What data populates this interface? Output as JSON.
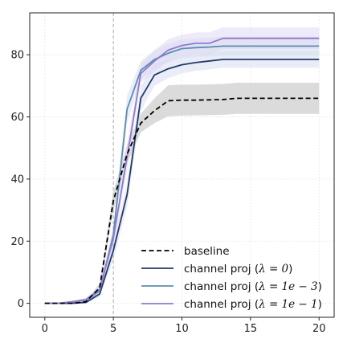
{
  "chart_data": {
    "type": "line",
    "title": "",
    "xlabel": "",
    "ylabel": "",
    "xlim": [
      -1.1,
      21.1
    ],
    "ylim": [
      -4.5,
      93.5
    ],
    "xticks": [
      0,
      5,
      10,
      15,
      20
    ],
    "yticks": [
      0,
      20,
      40,
      60,
      80
    ],
    "grid": true,
    "legend_position": "lower-right",
    "vline": {
      "x": 5,
      "color": "#aaaaaa",
      "style": "dashed"
    },
    "x": [
      0,
      1,
      2,
      3,
      4,
      5,
      6,
      7,
      8,
      9,
      10,
      11,
      12,
      13,
      14,
      15,
      16,
      17,
      18,
      19,
      20
    ],
    "series": [
      {
        "name": "baseline",
        "label_prefix": "baseline",
        "math": "",
        "color": "#000000",
        "dashed": true,
        "band_color": "#cfcfcf",
        "values": [
          0,
          0,
          0,
          0.5,
          5,
          33,
          48,
          58,
          62,
          65.2,
          65.4,
          65.4,
          65.5,
          65.6,
          66,
          66,
          66,
          66,
          66,
          66,
          66
        ],
        "lower": [
          0,
          0,
          0,
          0.2,
          3.5,
          30,
          45,
          55,
          58,
          60.2,
          60.4,
          60.5,
          60.6,
          60.7,
          61,
          61,
          61,
          61,
          61,
          61,
          61
        ],
        "upper": [
          0,
          0,
          0,
          0.8,
          6.5,
          36,
          51,
          61,
          66,
          70.2,
          70.4,
          70.4,
          70.5,
          70.6,
          71,
          71,
          71,
          71,
          71,
          71,
          71
        ]
      },
      {
        "name": "channel proj (λ = 0)",
        "label_prefix": "channel proj (",
        "math": "λ = 0",
        "color": "#1f3a6b",
        "dashed": false,
        "band_color": "#d6dcf0",
        "values": [
          0,
          0,
          0,
          0.3,
          3,
          17,
          35,
          66,
          73.5,
          75.5,
          76.8,
          77.5,
          78,
          78.5,
          78.5,
          78.5,
          78.5,
          78.5,
          78.5,
          78.5,
          78.5
        ],
        "lower": [
          0,
          0,
          0,
          0.1,
          2,
          14,
          31,
          62,
          70,
          72.5,
          74,
          74.8,
          75.3,
          75.8,
          75.8,
          75.8,
          75.8,
          75.8,
          75.8,
          75.8,
          75.8
        ],
        "upper": [
          0,
          0,
          0.2,
          0.6,
          4,
          20,
          39,
          70,
          77,
          78.5,
          79.6,
          80.2,
          80.7,
          81.2,
          81.2,
          81.2,
          81.2,
          81.2,
          81.2,
          81.2,
          81.2
        ]
      },
      {
        "name": "channel proj (λ = 1e − 3)",
        "label_prefix": "channel proj (",
        "math": "λ = 1e − 3",
        "color": "#5d8db0",
        "dashed": false,
        "band_color": "#d2def0",
        "values": [
          0,
          0,
          0.5,
          1,
          4,
          22,
          62.5,
          75,
          78.5,
          80.5,
          82,
          82.3,
          82.5,
          82.8,
          82.8,
          82.8,
          82.8,
          82.8,
          82.8,
          82.8,
          82.8
        ],
        "lower": [
          0,
          0,
          0.2,
          0.5,
          3,
          19,
          58,
          72,
          75.5,
          77.5,
          79,
          79.3,
          79.5,
          79.8,
          79.8,
          79.8,
          79.8,
          79.8,
          79.8,
          79.8,
          79.8
        ],
        "upper": [
          0,
          0.2,
          0.8,
          1.6,
          5,
          25,
          67,
          78,
          81.5,
          83.5,
          85,
          85.3,
          85.5,
          85.8,
          85.8,
          85.8,
          85.8,
          85.8,
          85.8,
          85.8,
          85.8
        ]
      },
      {
        "name": "channel proj (λ = 1e − 1)",
        "label_prefix": "channel proj (",
        "math": "λ = 1e − 1",
        "color": "#9178cf",
        "dashed": false,
        "band_color": "#ddd6f3",
        "values": [
          0,
          0,
          0.5,
          1.2,
          4.5,
          21,
          47,
          74,
          78,
          81.5,
          83,
          83.7,
          83.7,
          85.3,
          85.3,
          85.3,
          85.3,
          85.3,
          85.3,
          85.3,
          85.3
        ],
        "lower": [
          0,
          0,
          0.2,
          0.6,
          3.5,
          18,
          43,
          71,
          74.5,
          78,
          79.5,
          80.2,
          80.3,
          81.8,
          81.8,
          81.8,
          81.8,
          81.8,
          81.8,
          81.8,
          81.8
        ],
        "upper": [
          0,
          0.2,
          0.8,
          1.8,
          5.5,
          24,
          51,
          77,
          81.5,
          85,
          86.5,
          87.2,
          87.2,
          88.8,
          88.8,
          88.8,
          88.8,
          88.8,
          88.8,
          88.8,
          88.8
        ]
      }
    ]
  }
}
